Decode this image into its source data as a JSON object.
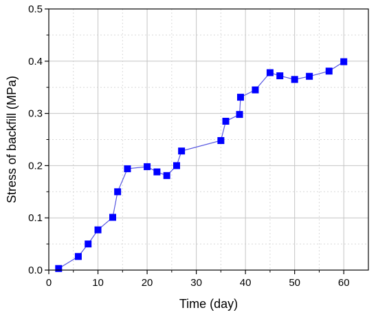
{
  "chart_data": {
    "type": "line",
    "title": "",
    "xlabel": "Time (day)",
    "ylabel": "Stress of backfill (MPa)",
    "xlim": [
      0,
      65
    ],
    "ylim": [
      0,
      0.5
    ],
    "x_ticks": [
      "0",
      "10",
      "20",
      "30",
      "40",
      "50",
      "60"
    ],
    "y_ticks": [
      "0.0",
      "0.1",
      "0.2",
      "0.3",
      "0.4",
      "0.5"
    ],
    "grid": true,
    "legend": "none",
    "marker": "square",
    "series": [
      {
        "color": "#0000ff",
        "line_color": "#5555e0",
        "x": [
          2,
          6,
          8,
          10,
          13,
          14,
          16,
          20,
          22,
          24,
          26,
          27,
          35,
          36,
          38.8,
          39,
          42,
          45,
          47,
          50,
          53,
          57,
          60
        ],
        "y": [
          0.003,
          0.026,
          0.05,
          0.077,
          0.101,
          0.15,
          0.194,
          0.198,
          0.188,
          0.181,
          0.2,
          0.228,
          0.248,
          0.285,
          0.298,
          0.331,
          0.345,
          0.378,
          0.372,
          0.365,
          0.371,
          0.381,
          0.399
        ]
      }
    ]
  }
}
